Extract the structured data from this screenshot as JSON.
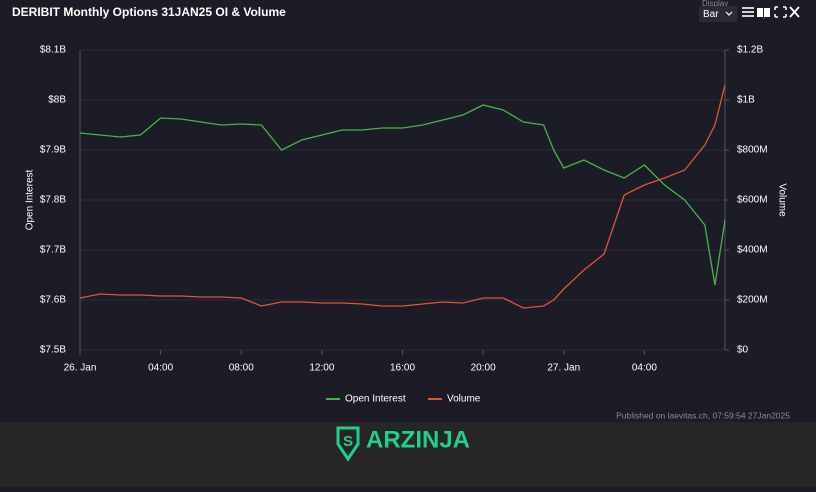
{
  "chart_data": {
    "type": "line",
    "title": "DERIBIT Monthly Options 31JAN25 OI & Volume",
    "y_label": "Open Interest",
    "y2_label": "Volume",
    "x": [
      0,
      1,
      2,
      3,
      4,
      5,
      6,
      7,
      8,
      9,
      10,
      11,
      12,
      13,
      14,
      15,
      16,
      17,
      18,
      19,
      20,
      21,
      22,
      23,
      23.5,
      24,
      25,
      26,
      27,
      28,
      29,
      30,
      31,
      31.5,
      32
    ],
    "xlim": [
      0,
      32
    ],
    "xticks": [
      {
        "value": 0,
        "label": "26. Jan"
      },
      {
        "value": 4,
        "label": "04:00"
      },
      {
        "value": 8,
        "label": "08:00"
      },
      {
        "value": 12,
        "label": "12:00"
      },
      {
        "value": 16,
        "label": "16:00"
      },
      {
        "value": 20,
        "label": "20:00"
      },
      {
        "value": 24,
        "label": "27. Jan"
      },
      {
        "value": 28,
        "label": "04:00"
      }
    ],
    "ylim": [
      7.5,
      8.1
    ],
    "yticks": [
      {
        "value": 7.5,
        "label": "$7.5B"
      },
      {
        "value": 7.6,
        "label": "$7.6B"
      },
      {
        "value": 7.7,
        "label": "$7.7B"
      },
      {
        "value": 7.8,
        "label": "$7.8B"
      },
      {
        "value": 7.9,
        "label": "$7.9B"
      },
      {
        "value": 8.0,
        "label": "$8B"
      },
      {
        "value": 8.1,
        "label": "$8.1B"
      }
    ],
    "y2lim": [
      0,
      1200
    ],
    "y2ticks": [
      {
        "value": 0,
        "label": "$0"
      },
      {
        "value": 200,
        "label": "$200M"
      },
      {
        "value": 400,
        "label": "$400M"
      },
      {
        "value": 600,
        "label": "$600M"
      },
      {
        "value": 800,
        "label": "$800M"
      },
      {
        "value": 1000,
        "label": "$1B"
      },
      {
        "value": 1200,
        "label": "$1.2B"
      }
    ],
    "grid": true,
    "series": [
      {
        "name": "Open Interest",
        "color": "#4caf50",
        "values": [
          7.934,
          7.93,
          7.926,
          7.93,
          7.964,
          7.962,
          7.956,
          7.95,
          7.952,
          7.95,
          7.9,
          7.92,
          7.93,
          7.94,
          7.94,
          7.944,
          7.944,
          7.95,
          7.96,
          7.97,
          7.99,
          7.98,
          7.956,
          7.95,
          7.9,
          7.864,
          7.88,
          7.86,
          7.844,
          7.87,
          7.83,
          7.8,
          7.75,
          7.63,
          7.76
        ]
      },
      {
        "name": "Volume",
        "color": "#e0533d",
        "axis": "y2",
        "values": [
          208,
          224,
          220,
          220,
          216,
          216,
          212,
          212,
          208,
          176,
          192,
          192,
          188,
          188,
          184,
          176,
          176,
          184,
          192,
          188,
          208,
          208,
          168,
          176,
          200,
          244,
          320,
          384,
          620,
          660,
          688,
          720,
          820,
          900,
          1060
        ]
      }
    ],
    "legend": "bottom"
  },
  "toolbar": {
    "label": "Display",
    "value": "Bar"
  },
  "credit": "Published on laevitas.ch, 07:59:54 27Jan2025",
  "brand": "ARZINJA"
}
